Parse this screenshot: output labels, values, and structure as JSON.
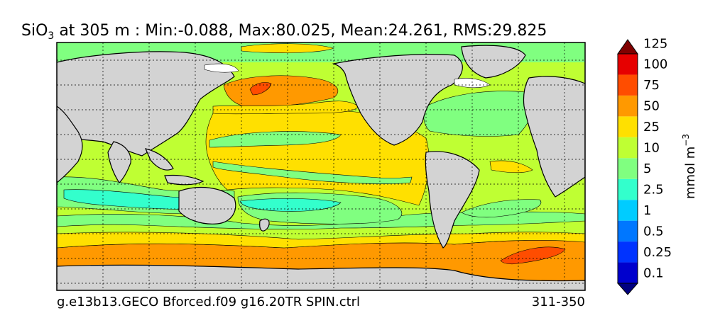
{
  "title": {
    "variable": "SiO",
    "subscript": "3",
    "rest": " at 305 m : Min:-0.088, Max:80.025, Mean:24.261, RMS:29.825"
  },
  "footer": {
    "left": "g.e13b13.GECO Bforced.f09 g16.20TR SPIN.ctrl",
    "right": "311-350"
  },
  "colorbar": {
    "unit_base": "mmol m",
    "unit_exp": "−3",
    "levels": [
      "0.1",
      "0.25",
      "0.5",
      "1",
      "2.5",
      "5",
      "10",
      "25",
      "50",
      "75",
      "100",
      "125"
    ],
    "colors": [
      "#000080",
      "#0000cd",
      "#0033ff",
      "#0077ff",
      "#00ccff",
      "#33ffcc",
      "#80ff80",
      "#bfff33",
      "#ffe000",
      "#ff9900",
      "#ff4d00",
      "#e60000",
      "#800000"
    ]
  },
  "map": {
    "land_color": "#d3d3d3",
    "missing_color": "#ffffff"
  }
}
